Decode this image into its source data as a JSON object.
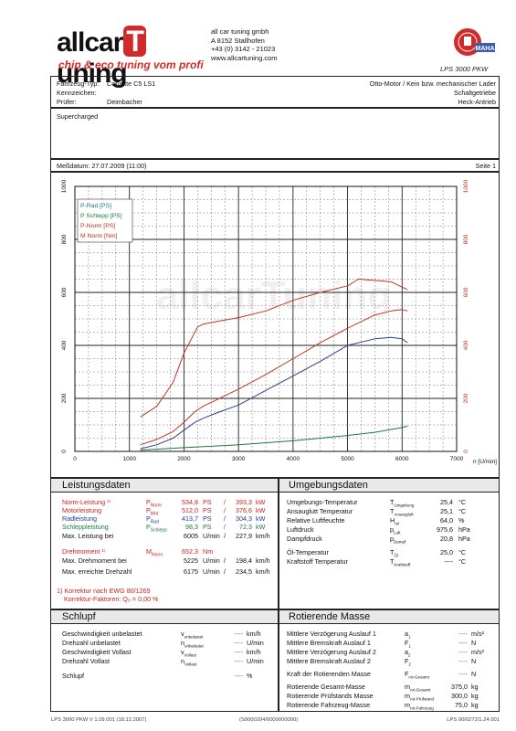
{
  "header": {
    "logo_text_left": "allcar",
    "logo_text_t": "T",
    "logo_text_right": "uning",
    "logo_tagline": "chip & eco tuning vom profi",
    "company_name": "all car tuning gmbh",
    "company_address": "A   8152 Stallhofen",
    "company_phone": "+43 (0) 3142 - 21023",
    "company_web": "www.allcartuning.com",
    "dyno_model": "LPS 3000 PKW",
    "seal_text": "MAHA"
  },
  "vehicle": {
    "type_label": "Fahrzeug-Typ:",
    "type_value": "Corvette C5 LS1",
    "plate_label": "Kennzeichen:",
    "plate_value": "",
    "tester_label": "Prüfer:",
    "tester_value": "Deimbacher",
    "engine": "Otto-Motor / Kein bzw. mechanischer Lader",
    "gearbox": "Schaltgetriebe",
    "drive": "Heck-Antrieb",
    "note": "Supercharged"
  },
  "measurement": {
    "date_label": "Meßdatum: 27.07.2009 (11:00)",
    "page_label": "Seite 1"
  },
  "chart_data": {
    "type": "line",
    "xlabel": "n [U/min]",
    "xlim": [
      0,
      7000
    ],
    "ylim": [
      0,
      1000
    ],
    "x_ticks": [
      "0",
      "1000",
      "2000",
      "3000",
      "4000",
      "5000",
      "6000",
      "7000"
    ],
    "y_ticks_left": [
      "0",
      "200",
      "400",
      "600",
      "800",
      "1000"
    ],
    "y_ticks_right": [
      "0",
      "200",
      "400",
      "600",
      "800",
      "1000"
    ],
    "legend": [
      "P-Rad [PS]",
      "P Schlepp [PS]",
      "P-Norm [PS]",
      "M Norm [Nm]"
    ],
    "legend_colors": [
      "#1d6f8a",
      "#1c7a3a",
      "#c2331f",
      "#c2331f"
    ],
    "watermark": "allcarTuning",
    "series": [
      {
        "name": "P-Rad [PS]",
        "color": "#2a3e8f",
        "x": [
          1200,
          1500,
          1800,
          2000,
          2200,
          2350,
          2600,
          3000,
          3500,
          4000,
          4500,
          5000,
          5500,
          5800,
          6000,
          6100
        ],
        "y": [
          10,
          25,
          50,
          80,
          110,
          125,
          145,
          175,
          230,
          285,
          340,
          400,
          425,
          430,
          425,
          410
        ]
      },
      {
        "name": "P Schlepp [PS]",
        "color": "#1c7a3a",
        "x": [
          1200,
          2000,
          3000,
          4000,
          5000,
          5500,
          6000,
          6100
        ],
        "y": [
          5,
          14,
          25,
          40,
          60,
          72,
          90,
          95
        ]
      },
      {
        "name": "P-Norm [PS]",
        "color": "#c2331f",
        "x": [
          1200,
          1500,
          1800,
          2000,
          2200,
          2350,
          2600,
          3000,
          3500,
          4000,
          4500,
          5000,
          5500,
          5800,
          6000,
          6100
        ],
        "y": [
          25,
          45,
          75,
          110,
          150,
          170,
          195,
          235,
          290,
          350,
          410,
          465,
          515,
          530,
          535,
          530
        ]
      },
      {
        "name": "M Norm [Nm]",
        "color": "#c2331f",
        "x": [
          1200,
          1500,
          1800,
          2000,
          2150,
          2250,
          2350,
          2600,
          3000,
          3500,
          4000,
          4500,
          5000,
          5200,
          5500,
          5800,
          6000,
          6100
        ],
        "y": [
          130,
          170,
          260,
          370,
          430,
          470,
          480,
          490,
          505,
          530,
          570,
          600,
          625,
          650,
          645,
          640,
          620,
          610
        ]
      }
    ]
  },
  "leistung": {
    "title": "Leistungsdaten",
    "rows": [
      {
        "label": "Norm-Leistung ¹⁾",
        "sym": "P",
        "sub": "Norm",
        "v1": "534,8",
        "u1": "PS",
        "sep": "/",
        "v2": "393,3",
        "u2": "kW",
        "cls": "red"
      },
      {
        "label": "Motorleistung",
        "sym": "P",
        "sub": "Mot",
        "v1": "512,0",
        "u1": "PS",
        "sep": "/",
        "v2": "376,6",
        "u2": "kW",
        "cls": "red"
      },
      {
        "label": "Radleistung",
        "sym": "P",
        "sub": "Rad",
        "v1": "413,7",
        "u1": "PS",
        "sep": "/",
        "v2": "304,3",
        "u2": "kW",
        "cls": "blue"
      },
      {
        "label": "Schleppleistung",
        "sym": "P",
        "sub": "Schlepp",
        "v1": "98,3",
        "u1": "PS",
        "sep": "/",
        "v2": "72,3",
        "u2": "kW",
        "cls": "green"
      },
      {
        "label": "Max. Leistung bei",
        "sym": "",
        "sub": "",
        "v1": "6005",
        "u1": "U/min",
        "sep": "/",
        "v2": "227,9",
        "u2": "km/h",
        "cls": ""
      },
      {
        "label": "Drehmoment ¹⁾",
        "sym": "M",
        "sub": "Norm",
        "v1": "652,3",
        "u1": "Nm",
        "sep": "",
        "v2": "",
        "u2": "",
        "cls": "red"
      },
      {
        "label": "Max. Drehmoment bei",
        "sym": "",
        "sub": "",
        "v1": "5225",
        "u1": "U/min",
        "sep": "/",
        "v2": "198,4",
        "u2": "km/h",
        "cls": ""
      },
      {
        "label": "Max. erreichte Drehzahl",
        "sym": "",
        "sub": "",
        "v1": "6175",
        "u1": "U/min",
        "sep": "/",
        "v2": "234,5",
        "u2": "km/h",
        "cls": ""
      }
    ],
    "footnote1": "1) Korrektur nach EWG 80/1269",
    "footnote2": "Korrektur-Faktoren: Q₀ =   0,00 %"
  },
  "umgebung": {
    "title": "Umgebungsdaten",
    "rows": [
      {
        "label": "Umgebungs-Temperatur",
        "sym": "T",
        "sub": "Umgebung",
        "val": "25,4",
        "unit": "°C"
      },
      {
        "label": "Ansauglutt Temperatur",
        "sym": "T",
        "sub": "Ansaugluft",
        "val": "25,1",
        "unit": "°C"
      },
      {
        "label": "Relative Luftfeuchte",
        "sym": "H",
        "sub": "rel",
        "val": "64,0",
        "unit": "%"
      },
      {
        "label": "Luftdruck",
        "sym": "p",
        "sub": "Luft",
        "val": "975,6",
        "unit": "hPa"
      },
      {
        "label": "Dampfdruck",
        "sym": "p",
        "sub": "Dampf",
        "val": "20,8",
        "unit": "hPa"
      },
      {
        "label": "Öl-Temperatur",
        "sym": "T",
        "sub": "Öl",
        "val": "25,0",
        "unit": "°C"
      },
      {
        "label": "Kraftstoff Temperatur",
        "sym": "T",
        "sub": "Kraftstoff",
        "val": "----",
        "unit": "°C"
      }
    ]
  },
  "schlupf": {
    "title": "Schlupf",
    "rows": [
      {
        "label": "Geschwindigkeit unbelastet",
        "sym": "v",
        "sub": "unbelastet",
        "val": "----",
        "unit": "km/h"
      },
      {
        "label": "Drehzahl unbelastet",
        "sym": "n",
        "sub": "unbelastet",
        "val": "----",
        "unit": "U/min"
      },
      {
        "label": "Geschwindigkeit Vollast",
        "sym": "v",
        "sub": "Vollast",
        "val": "----",
        "unit": "km/h"
      },
      {
        "label": "Drehzahl Vollast",
        "sym": "n",
        "sub": "Vollast",
        "val": "----",
        "unit": "U/min"
      },
      {
        "label": "Schlupf",
        "sym": "",
        "sub": "",
        "val": "----",
        "unit": "%"
      }
    ]
  },
  "rotierende": {
    "title": "Rotierende Masse",
    "rows": [
      {
        "label": "Mittlere Verzögerung Auslauf 1",
        "sym": "a",
        "sub": "1",
        "val": "----",
        "unit": "m/s²"
      },
      {
        "label": "Mittlere Bremskraft Auslauf 1",
        "sym": "F",
        "sub": "1",
        "val": "----",
        "unit": "N"
      },
      {
        "label": "Mittlere Verzögerung Auslauf 2",
        "sym": "a",
        "sub": "2",
        "val": "----",
        "unit": "m/s²"
      },
      {
        "label": "Mittlere Bremskraft Auslauf 2",
        "sym": "F",
        "sub": "2",
        "val": "----",
        "unit": "N"
      },
      {
        "label": "Kraft der Rotierenden Masse",
        "sym": "F",
        "sub": "rot-Gesamt",
        "val": "----",
        "unit": "N"
      },
      {
        "label": "Rotierende Gesamt-Masse",
        "sym": "m",
        "sub": "rot-Gesamt",
        "val": "375,0",
        "unit": "kg"
      },
      {
        "label": "Rotierende Prüfstands Masse",
        "sym": "m",
        "sub": "rot-Prüfstand",
        "val": "300,0",
        "unit": "kg"
      },
      {
        "label": "Rotierende Fahrzeug-Masse",
        "sym": "m",
        "sub": "rot-Fahrzeug",
        "val": "75,0",
        "unit": "kg"
      }
    ]
  },
  "footer": {
    "left": "LPS 3000 PKW V 1.09.001 (18.12.2007)",
    "center": "(S0000204/0000000000)",
    "right": "LPS 00/0272/1.24.001"
  }
}
